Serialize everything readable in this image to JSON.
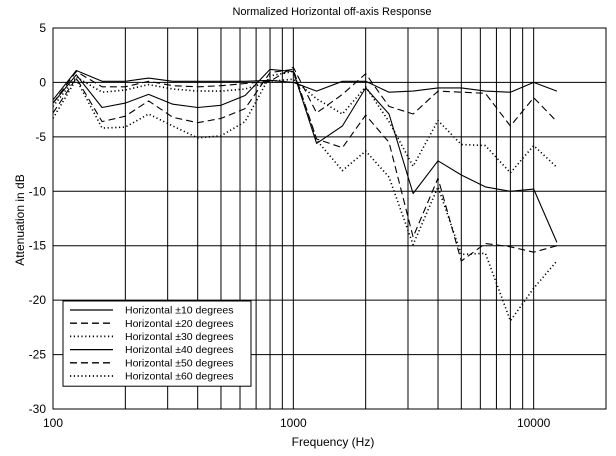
{
  "chart_data": {
    "type": "line",
    "title": "Normalized Horizontal off-axis Response",
    "xlabel": "Frequency (Hz)",
    "ylabel": "Attenuation in dB",
    "xscale": "log",
    "xlim": [
      100,
      20000
    ],
    "ylim": [
      -30,
      5
    ],
    "x_ticks": [
      {
        "value": 100,
        "label": "100"
      },
      {
        "value": 1000,
        "label": "1000"
      },
      {
        "value": 10000,
        "label": "10000"
      }
    ],
    "y_ticks": [
      {
        "value": 5,
        "label": "5"
      },
      {
        "value": 0,
        "label": "0"
      },
      {
        "value": -5,
        "label": "-5"
      },
      {
        "value": -10,
        "label": "-10"
      },
      {
        "value": -15,
        "label": "-15"
      },
      {
        "value": -20,
        "label": "-20"
      },
      {
        "value": -25,
        "label": "-25"
      },
      {
        "value": -30,
        "label": "-30"
      }
    ],
    "grid": true,
    "legend_position": "bottom-left",
    "x": [
      100,
      125,
      160,
      200,
      250,
      315,
      400,
      500,
      630,
      800,
      1000,
      1250,
      1600,
      2000,
      2500,
      3150,
      4000,
      5000,
      6300,
      8000,
      10000,
      12500
    ],
    "series": [
      {
        "name": "Horizontal ±10 degrees",
        "style": "solid",
        "values": [
          -1.6,
          1.1,
          0.1,
          0.1,
          0.4,
          0.1,
          0.1,
          0.1,
          0.1,
          0.2,
          0.0,
          -0.8,
          0.1,
          0.1,
          -0.9,
          -0.8,
          -0.5,
          -0.5,
          -0.8,
          -0.9,
          0.0,
          -0.8
        ]
      },
      {
        "name": "Horizontal ±20 degrees",
        "style": "dashed",
        "values": [
          -1.9,
          1.0,
          -0.4,
          -0.4,
          0.1,
          -0.3,
          -0.4,
          -0.3,
          -0.1,
          0.1,
          1.4,
          -2.8,
          -1.1,
          0.8,
          -2.2,
          -2.9,
          -0.8,
          -0.9,
          -1.0,
          -4.0,
          -1.4,
          -3.6
        ]
      },
      {
        "name": "Horizontal ±30 degrees",
        "style": "dotted",
        "values": [
          -2.2,
          0.5,
          -0.9,
          -0.7,
          -0.2,
          -0.6,
          -0.8,
          -0.8,
          -0.6,
          0.1,
          0.3,
          -1.5,
          -2.9,
          -0.4,
          -3.6,
          -7.7,
          -3.5,
          -5.7,
          -5.8,
          -8.3,
          -5.8,
          -7.8
        ]
      },
      {
        "name": "Horizontal ±40 degrees",
        "style": "solid",
        "values": [
          -1.9,
          0.7,
          -2.3,
          -1.9,
          -1.1,
          -2.0,
          -2.3,
          -2.1,
          -1.2,
          1.2,
          1.0,
          -5.6,
          -4.0,
          -0.5,
          -2.9,
          -10.2,
          -7.2,
          -8.5,
          -9.6,
          -10.0,
          -9.8,
          -14.7
        ]
      },
      {
        "name": "Horizontal ±50 degrees",
        "style": "dashed",
        "values": [
          -2.8,
          0.4,
          -3.6,
          -3.1,
          -1.7,
          -3.2,
          -3.7,
          -3.3,
          -2.4,
          0.9,
          1.2,
          -5.2,
          -6.0,
          -3.0,
          -5.5,
          -14.2,
          -8.8,
          -16.4,
          -14.8,
          -15.1,
          -15.6,
          -15.0
        ]
      },
      {
        "name": "Horizontal ±60 degrees",
        "style": "dotted",
        "values": [
          -3.3,
          0.3,
          -4.2,
          -4.1,
          -2.9,
          -4.0,
          -5.1,
          -4.9,
          -3.6,
          0.6,
          1.0,
          -5.3,
          -8.1,
          -6.3,
          -8.7,
          -14.9,
          -9.6,
          -15.8,
          -15.7,
          -21.9,
          -18.9,
          -16.4
        ]
      }
    ]
  }
}
